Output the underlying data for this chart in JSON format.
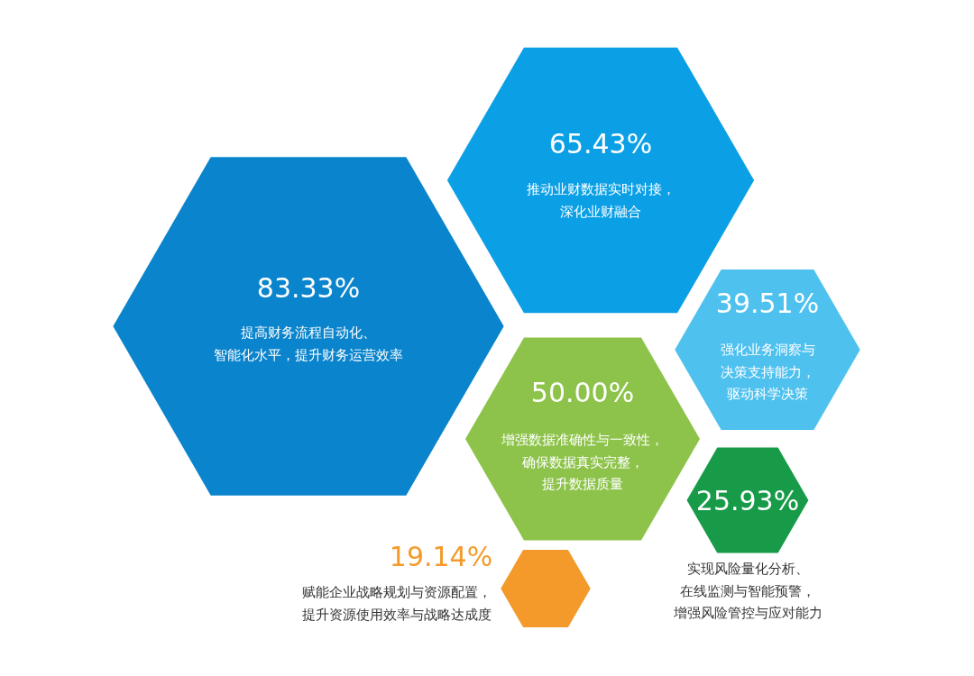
{
  "chart_data": {
    "type": "other",
    "categories": [
      "提高财务流程自动化、智能化水平，提升财务运营效率",
      "推动业财数据实时对接，深化业财融合",
      "增强数据准确性与一致性，确保数据真实完整，提升数据质量",
      "强化业务洞察与决策支持能力，驱动科学决策",
      "实现风险量化分析、在线监测与智能预警，增强风险管控与应对能力",
      "赋能企业战略规划与资源配置，提升资源使用效率与战略达成度"
    ],
    "values": [
      83.33,
      65.43,
      50.0,
      39.51,
      25.93,
      19.14
    ],
    "value_labels": [
      "83.33%",
      "65.43%",
      "50.00%",
      "39.51%",
      "25.93%",
      "19.14%"
    ],
    "colors": [
      "#0a84cc",
      "#0ba0e6",
      "#8dc34a",
      "#4fc1ef",
      "#179b48",
      "#f39a2b"
    ]
  }
}
